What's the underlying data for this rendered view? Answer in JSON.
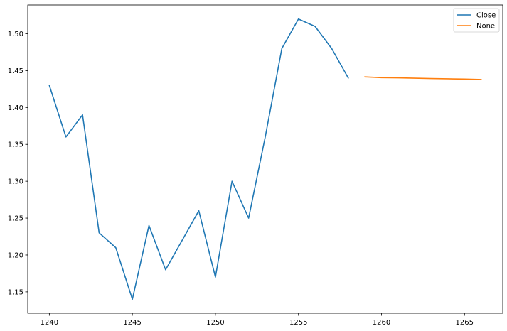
{
  "chart_data": {
    "type": "line",
    "title": "",
    "xlabel": "",
    "ylabel": "",
    "xlim": [
      1238.7,
      1267.3
    ],
    "ylim": [
      1.121,
      1.539
    ],
    "xticks": [
      1240,
      1245,
      1250,
      1255,
      1260,
      1265
    ],
    "yticks": [
      1.15,
      1.2,
      1.25,
      1.3,
      1.35,
      1.4,
      1.45,
      1.5
    ],
    "ytick_labels": [
      "1.15",
      "1.20",
      "1.25",
      "1.30",
      "1.35",
      "1.40",
      "1.45",
      "1.50"
    ],
    "grid": false,
    "legend_position": "top-right",
    "series": [
      {
        "name": "Close",
        "color": "#1f77b4",
        "x": [
          1240,
          1241,
          1242,
          1243,
          1244,
          1245,
          1246,
          1247,
          1248,
          1249,
          1250,
          1251,
          1252,
          1253,
          1254,
          1255,
          1256,
          1257,
          1258
        ],
        "y": [
          1.43,
          1.36,
          1.39,
          1.23,
          1.21,
          1.14,
          1.24,
          1.18,
          1.22,
          1.26,
          1.17,
          1.3,
          1.25,
          1.36,
          1.48,
          1.52,
          1.51,
          1.48,
          1.44
        ]
      },
      {
        "name": "None",
        "color": "#ff7f0e",
        "x": [
          1259,
          1260,
          1261,
          1262,
          1263,
          1264,
          1265,
          1266
        ],
        "y": [
          1.4415,
          1.4405,
          1.4402,
          1.4397,
          1.4393,
          1.4389,
          1.4385,
          1.438
        ]
      }
    ]
  }
}
